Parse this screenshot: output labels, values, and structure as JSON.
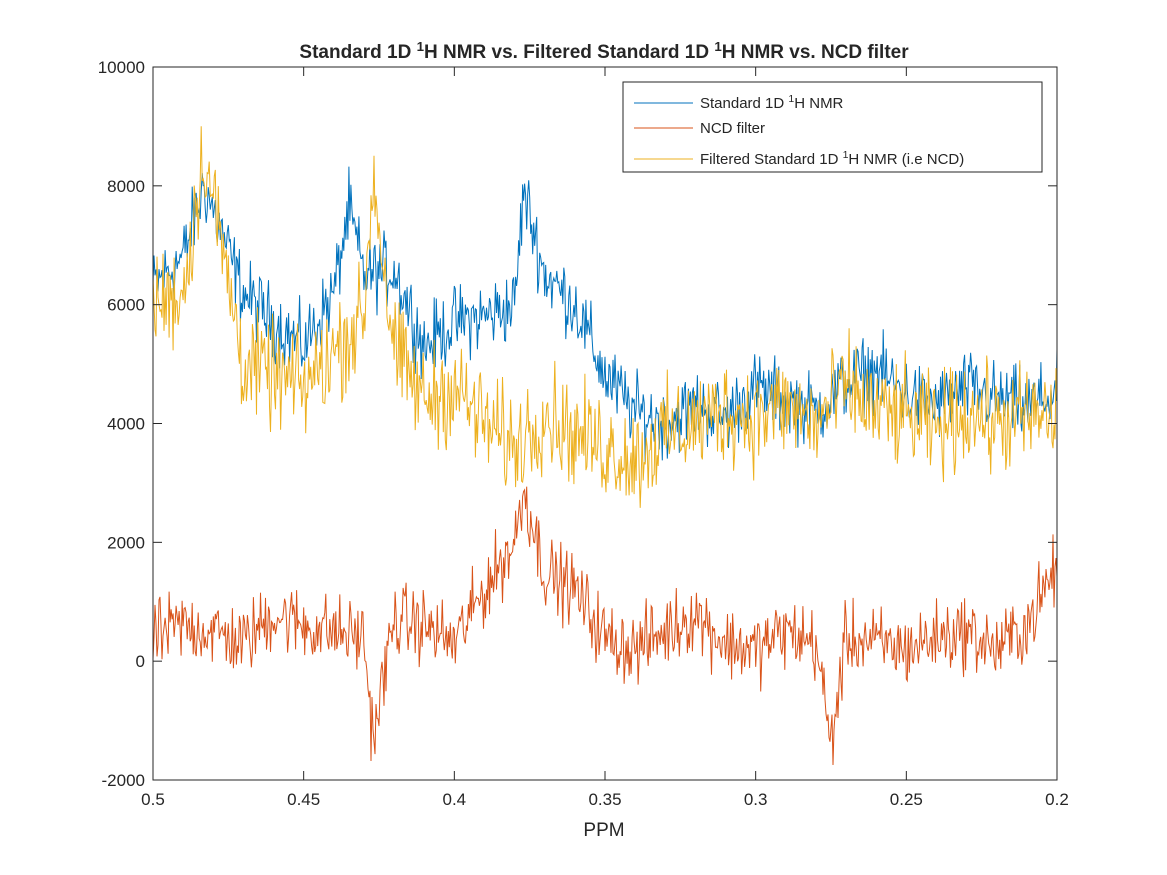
{
  "chart_data": {
    "type": "line",
    "title": {
      "parts": [
        {
          "text": "Standard 1D "
        },
        {
          "text": "1",
          "sup": true
        },
        {
          "text": "H NMR vs. Filtered Standard 1D "
        },
        {
          "text": "1",
          "sup": true
        },
        {
          "text": "H NMR vs. NCD filter"
        }
      ]
    },
    "xlabel": "PPM",
    "ylabel": "",
    "x_reversed": true,
    "xlim": [
      0.2,
      0.5
    ],
    "ylim": [
      -2000,
      10000
    ],
    "x_ticks": [
      0.5,
      0.45,
      0.4,
      0.35,
      0.3,
      0.25,
      0.2
    ],
    "x_tick_labels": [
      "0.5",
      "0.45",
      "0.4",
      "0.35",
      "0.3",
      "0.25",
      "0.2"
    ],
    "y_ticks": [
      -2000,
      0,
      2000,
      4000,
      6000,
      8000,
      10000
    ],
    "y_tick_labels": [
      "-2000",
      "0",
      "2000",
      "4000",
      "6000",
      "8000",
      "10000"
    ],
    "grid": false,
    "legend_placement": "top-right",
    "series": [
      {
        "name_parts": [
          {
            "text": "Standard 1D "
          },
          {
            "text": "1",
            "sup": true
          },
          {
            "text": "H NMR"
          }
        ],
        "color": "#0072BD",
        "x": [
          0.5,
          0.49,
          0.483,
          0.47,
          0.46,
          0.45,
          0.44,
          0.435,
          0.43,
          0.42,
          0.41,
          0.4,
          0.39,
          0.38,
          0.377,
          0.37,
          0.36,
          0.35,
          0.34,
          0.33,
          0.32,
          0.31,
          0.3,
          0.29,
          0.28,
          0.27,
          0.26,
          0.25,
          0.24,
          0.23,
          0.22,
          0.21,
          0.2
        ],
        "y": [
          6300,
          6800,
          8000,
          6200,
          5700,
          5300,
          6200,
          7600,
          6500,
          6600,
          5300,
          5700,
          5800,
          6000,
          7900,
          6500,
          6000,
          4800,
          4200,
          4000,
          4300,
          4100,
          4600,
          4400,
          4200,
          4700,
          4900,
          4500,
          4300,
          4600,
          4400,
          4300,
          4500
        ]
      },
      {
        "name": "NCD filter",
        "color": "#D95319",
        "x": [
          0.5,
          0.49,
          0.48,
          0.47,
          0.46,
          0.45,
          0.44,
          0.43,
          0.427,
          0.42,
          0.41,
          0.4,
          0.39,
          0.38,
          0.377,
          0.37,
          0.36,
          0.35,
          0.34,
          0.33,
          0.32,
          0.31,
          0.3,
          0.29,
          0.28,
          0.275,
          0.27,
          0.26,
          0.25,
          0.24,
          0.23,
          0.22,
          0.21,
          0.2
        ],
        "y": [
          400,
          600,
          500,
          300,
          800,
          600,
          500,
          400,
          -1300,
          700,
          600,
          300,
          1200,
          2000,
          2900,
          1500,
          1200,
          400,
          200,
          500,
          800,
          300,
          200,
          500,
          300,
          -1400,
          400,
          300,
          200,
          400,
          500,
          200,
          600,
          1600
        ]
      },
      {
        "name_parts": [
          {
            "text": "Filtered Standard 1D "
          },
          {
            "text": "1",
            "sup": true
          },
          {
            "text": "H NMR (i.e NCD)"
          }
        ],
        "color": "#EDB120",
        "x": [
          0.5,
          0.49,
          0.483,
          0.47,
          0.46,
          0.45,
          0.44,
          0.43,
          0.427,
          0.42,
          0.41,
          0.4,
          0.39,
          0.38,
          0.37,
          0.36,
          0.35,
          0.34,
          0.33,
          0.32,
          0.31,
          0.3,
          0.29,
          0.28,
          0.27,
          0.26,
          0.25,
          0.24,
          0.23,
          0.22,
          0.21,
          0.2
        ],
        "y": [
          6000,
          6200,
          8600,
          5000,
          4800,
          4600,
          5200,
          5800,
          8200,
          5200,
          4400,
          4600,
          4000,
          3600,
          4200,
          3800,
          3600,
          3400,
          3800,
          4000,
          4200,
          4100,
          4300,
          4000,
          4600,
          4200,
          4100,
          3900,
          4200,
          4000,
          4100,
          4100
        ]
      }
    ]
  }
}
